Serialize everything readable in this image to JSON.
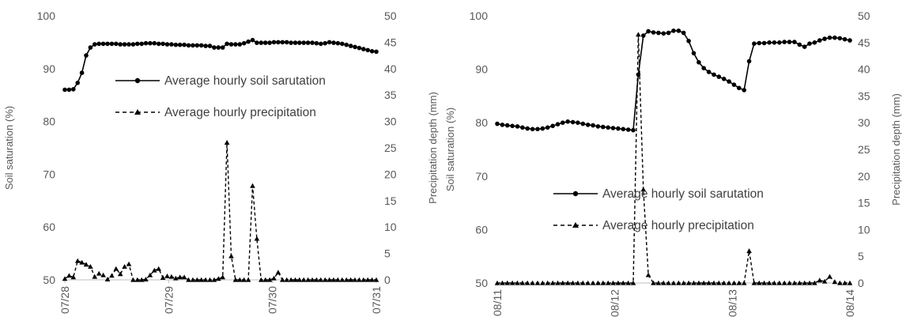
{
  "chart_data": [
    {
      "type": "line",
      "x_ticks": [
        "07/28",
        "07/29",
        "07/30",
        "07/31"
      ],
      "ylabel": "Soil saturation (%)",
      "y2label": "Precipitation depth (mm)",
      "ylim": [
        50,
        100
      ],
      "y2lim": [
        0,
        50
      ],
      "y_ticks": [
        "50",
        "60",
        "70",
        "80",
        "90",
        "100"
      ],
      "y2_ticks": [
        "0",
        "5",
        "10",
        "15",
        "20",
        "25",
        "30",
        "35",
        "40",
        "45",
        "50"
      ],
      "legend_position": "top-right",
      "series": [
        {
          "name": "Average hourly soil sarutation",
          "axis": "left",
          "marker": "circle",
          "line": "solid",
          "values": [
            86.0,
            86.0,
            86.1,
            87.3,
            89.2,
            92.5,
            94.0,
            94.6,
            94.7,
            94.7,
            94.7,
            94.7,
            94.7,
            94.6,
            94.6,
            94.6,
            94.6,
            94.7,
            94.7,
            94.8,
            94.8,
            94.8,
            94.7,
            94.7,
            94.6,
            94.6,
            94.5,
            94.5,
            94.5,
            94.4,
            94.4,
            94.4,
            94.4,
            94.3,
            94.3,
            94.0,
            94.0,
            94.0,
            94.7,
            94.6,
            94.6,
            94.6,
            94.8,
            95.1,
            95.4,
            94.9,
            94.9,
            94.9,
            94.9,
            95.0,
            95.0,
            95.0,
            95.0,
            94.9,
            94.9,
            94.9,
            94.9,
            94.9,
            94.9,
            94.8,
            94.7,
            94.8,
            95.0,
            94.9,
            94.8,
            94.7,
            94.5,
            94.3,
            94.1,
            93.9,
            93.7,
            93.5,
            93.3,
            93.2
          ]
        },
        {
          "name": "Average hourly precipitation",
          "axis": "right",
          "marker": "triangle",
          "line": "dashed",
          "values": [
            0.2,
            0.8,
            0.5,
            3.6,
            3.3,
            2.9,
            2.5,
            0.6,
            1.2,
            0.9,
            0.1,
            0.8,
            2.1,
            1.1,
            2.5,
            3.0,
            0,
            0,
            0,
            0.1,
            0.9,
            1.8,
            2.1,
            0.4,
            0.7,
            0.6,
            0.3,
            0.5,
            0.5,
            0,
            0,
            0,
            0,
            0,
            0,
            0,
            0.2,
            0.5,
            26.0,
            4.5,
            0,
            0,
            0,
            0,
            17.8,
            7.8,
            0,
            0,
            0,
            0.3,
            1.4,
            0,
            0,
            0,
            0,
            0,
            0,
            0,
            0,
            0,
            0,
            0,
            0,
            0,
            0,
            0,
            0,
            0,
            0,
            0,
            0,
            0,
            0,
            0
          ]
        }
      ]
    },
    {
      "type": "line",
      "x_ticks": [
        "08/11",
        "08/12",
        "08/13",
        "08/14"
      ],
      "ylabel": "Soil saturation (%)",
      "y2label": "Precipitation depth (mm)",
      "ylim": [
        50,
        100
      ],
      "y2lim": [
        0,
        50
      ],
      "y_ticks": [
        "50",
        "60",
        "70",
        "80",
        "90",
        "100"
      ],
      "y2_ticks": [
        "0",
        "5",
        "10",
        "15",
        "20",
        "25",
        "30",
        "35",
        "40",
        "45",
        "50"
      ],
      "legend_position": "center",
      "series": [
        {
          "name": "Average hourly soil sarutation",
          "axis": "left",
          "marker": "circle",
          "line": "solid",
          "values": [
            79.8,
            79.6,
            79.5,
            79.4,
            79.3,
            79.1,
            78.9,
            78.8,
            78.8,
            78.9,
            79.1,
            79.4,
            79.7,
            80.0,
            80.2,
            80.1,
            80.0,
            79.8,
            79.6,
            79.5,
            79.3,
            79.2,
            79.1,
            79.0,
            78.9,
            78.8,
            78.7,
            78.6,
            89.0,
            96.3,
            97.1,
            96.9,
            96.8,
            96.7,
            96.8,
            97.2,
            97.2,
            96.8,
            95.3,
            93.0,
            91.3,
            90.2,
            89.5,
            89.0,
            88.6,
            88.2,
            87.7,
            87.1,
            86.5,
            86.1,
            91.5,
            94.8,
            94.9,
            94.9,
            95.0,
            95.0,
            95.0,
            95.1,
            95.1,
            95.1,
            94.6,
            94.2,
            94.8,
            95.0,
            95.4,
            95.7,
            95.9,
            95.9,
            95.8,
            95.6,
            95.4
          ]
        },
        {
          "name": "Average hourly precipitation",
          "axis": "right",
          "marker": "triangle",
          "line": "dashed",
          "values": [
            0,
            0,
            0,
            0,
            0,
            0,
            0,
            0,
            0,
            0,
            0,
            0,
            0,
            0,
            0,
            0,
            0,
            0,
            0,
            0,
            0,
            0,
            0,
            0,
            0,
            0,
            0,
            0,
            46.5,
            17.5,
            1.5,
            0,
            0,
            0,
            0,
            0,
            0,
            0,
            0,
            0,
            0,
            0,
            0,
            0,
            0,
            0,
            0,
            0,
            0,
            0,
            6.0,
            0,
            0,
            0,
            0,
            0,
            0,
            0,
            0,
            0,
            0,
            0,
            0,
            0,
            0.5,
            0.3,
            1.2,
            0.2,
            0,
            0,
            0
          ]
        }
      ]
    }
  ]
}
